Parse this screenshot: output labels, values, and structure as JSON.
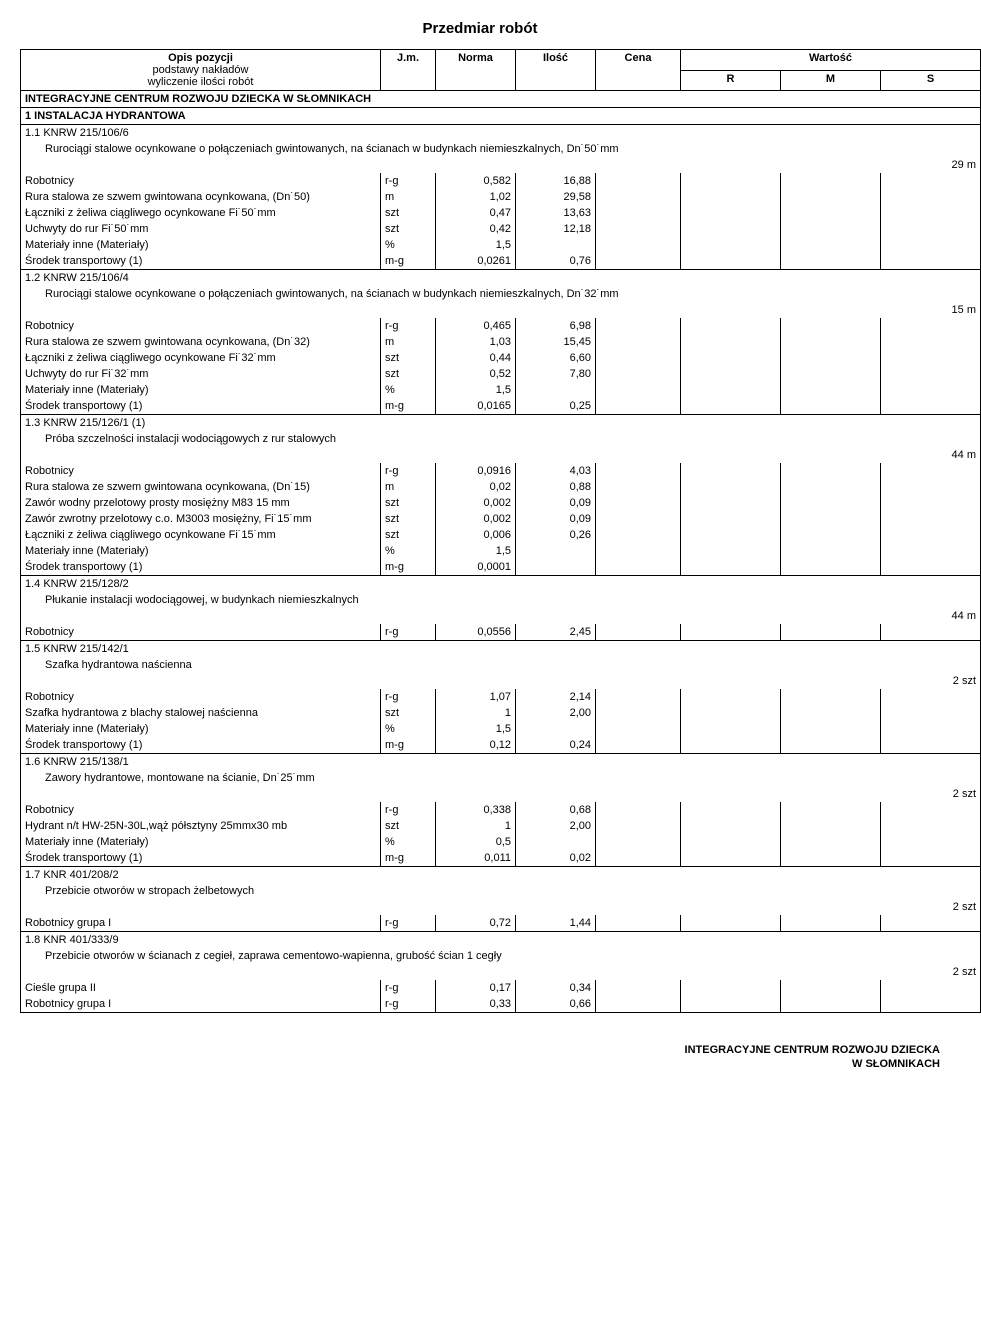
{
  "doc_title": "Przedmiar robót",
  "header": {
    "desc_l1": "Opis pozycji",
    "desc_l2": "podstawy nakładów",
    "desc_l3": "wyliczenie ilości robót",
    "jm": "J.m.",
    "norma": "Norma",
    "ilosc": "Ilość",
    "cena": "Cena",
    "wartosc": "Wartość",
    "r": "R",
    "m": "M",
    "s": "S"
  },
  "section_title": "INTEGRACYJNE CENTRUM ROZWOJU DZIECKA W SŁOMNIKACH",
  "group_title": "1 INSTALACJA HYDRANTOWA",
  "items": [
    {
      "code": "1.1 KNRW 215/106/6",
      "desc": "Rurociągi stalowe ocynkowane o połączeniach gwintowanych, na ścianach w budynkach niemieszkalnych, Dn˙50˙mm",
      "qty": "29 m",
      "rows": [
        {
          "name": "Robotnicy",
          "jm": "r-g",
          "norm": "0,582",
          "il": "16,88"
        },
        {
          "name": "Rura stalowa ze szwem gwintowana ocynkowana, (Dn˙50)",
          "jm": "m",
          "norm": "1,02",
          "il": "29,58"
        },
        {
          "name": "Łączniki z żeliwa ciągliwego ocynkowane Fi˙50˙mm",
          "jm": "szt",
          "norm": "0,47",
          "il": "13,63"
        },
        {
          "name": "Uchwyty do rur Fi˙50˙mm",
          "jm": "szt",
          "norm": "0,42",
          "il": "12,18"
        },
        {
          "name": "Materiały inne (Materiały)",
          "jm": "%",
          "norm": "1,5",
          "il": ""
        },
        {
          "name": "Środek transportowy (1)",
          "jm": "m-g",
          "norm": "0,0261",
          "il": "0,76"
        }
      ]
    },
    {
      "code": "1.2 KNRW 215/106/4",
      "desc": "Rurociągi stalowe ocynkowane o połączeniach gwintowanych, na ścianach w budynkach niemieszkalnych, Dn˙32˙mm",
      "qty": "15 m",
      "rows": [
        {
          "name": "Robotnicy",
          "jm": "r-g",
          "norm": "0,465",
          "il": "6,98"
        },
        {
          "name": "Rura stalowa ze szwem gwintowana ocynkowana, (Dn˙32)",
          "jm": "m",
          "norm": "1,03",
          "il": "15,45"
        },
        {
          "name": "Łączniki z żeliwa ciągliwego ocynkowane Fi˙32˙mm",
          "jm": "szt",
          "norm": "0,44",
          "il": "6,60"
        },
        {
          "name": "Uchwyty do rur Fi˙32˙mm",
          "jm": "szt",
          "norm": "0,52",
          "il": "7,80"
        },
        {
          "name": "Materiały inne (Materiały)",
          "jm": "%",
          "norm": "1,5",
          "il": ""
        },
        {
          "name": "Środek transportowy (1)",
          "jm": "m-g",
          "norm": "0,0165",
          "il": "0,25"
        }
      ]
    },
    {
      "code": "1.3 KNRW 215/126/1 (1)",
      "desc": "Próba szczelności instalacji wodociągowych z rur stalowych",
      "qty": "44 m",
      "rows": [
        {
          "name": "Robotnicy",
          "jm": "r-g",
          "norm": "0,0916",
          "il": "4,03"
        },
        {
          "name": "Rura stalowa ze szwem gwintowana ocynkowana, (Dn˙15)",
          "jm": "m",
          "norm": "0,02",
          "il": "0,88"
        },
        {
          "name": "Zawór wodny przelotowy prosty mosiężny M83 15 mm",
          "jm": "szt",
          "norm": "0,002",
          "il": "0,09"
        },
        {
          "name": "Zawór zwrotny przelotowy c.o. M3003 mosiężny, Fi˙15˙mm",
          "jm": "szt",
          "norm": "0,002",
          "il": "0,09"
        },
        {
          "name": "Łączniki z żeliwa ciągliwego ocynkowane Fi˙15˙mm",
          "jm": "szt",
          "norm": "0,006",
          "il": "0,26"
        },
        {
          "name": "Materiały inne (Materiały)",
          "jm": "%",
          "norm": "1,5",
          "il": ""
        },
        {
          "name": "Środek transportowy (1)",
          "jm": "m-g",
          "norm": "0,0001",
          "il": ""
        }
      ]
    },
    {
      "code": "1.4 KNRW 215/128/2",
      "desc": "Płukanie instalacji wodociągowej, w budynkach niemieszkalnych",
      "qty": "44 m",
      "rows": [
        {
          "name": "Robotnicy",
          "jm": "r-g",
          "norm": "0,0556",
          "il": "2,45"
        }
      ]
    },
    {
      "code": "1.5 KNRW 215/142/1",
      "desc": "Szafka hydrantowa naścienna",
      "qty": "2 szt",
      "rows": [
        {
          "name": "Robotnicy",
          "jm": "r-g",
          "norm": "1,07",
          "il": "2,14"
        },
        {
          "name": "Szafka hydrantowa z blachy stalowej naścienna",
          "jm": "szt",
          "norm": "1",
          "il": "2,00"
        },
        {
          "name": "Materiały inne (Materiały)",
          "jm": "%",
          "norm": "1,5",
          "il": ""
        },
        {
          "name": "Środek transportowy (1)",
          "jm": "m-g",
          "norm": "0,12",
          "il": "0,24"
        }
      ]
    },
    {
      "code": "1.6 KNRW 215/138/1",
      "desc": "Zawory hydrantowe, montowane na ścianie, Dn˙25˙mm",
      "qty": "2 szt",
      "rows": [
        {
          "name": "Robotnicy",
          "jm": "r-g",
          "norm": "0,338",
          "il": "0,68"
        },
        {
          "name": "Hydrant n/t HW-25N-30L,wąż półsztyny 25mmx30 mb",
          "jm": "szt",
          "norm": "1",
          "il": "2,00"
        },
        {
          "name": "Materiały inne (Materiały)",
          "jm": "%",
          "norm": "0,5",
          "il": ""
        },
        {
          "name": "Środek transportowy (1)",
          "jm": "m-g",
          "norm": "0,011",
          "il": "0,02"
        }
      ]
    },
    {
      "code": "1.7 KNR 401/208/2",
      "desc": "Przebicie otworów w stropach żelbetowych",
      "qty": "2 szt",
      "rows": [
        {
          "name": "Robotnicy grupa I",
          "jm": "r-g",
          "norm": "0,72",
          "il": "1,44"
        }
      ]
    },
    {
      "code": "1.8 KNR 401/333/9",
      "desc": "Przebicie otworów w ścianach z cegieł, zaprawa cementowo-wapienna, grubość ścian 1 cegły",
      "qty": "2 szt",
      "rows": [
        {
          "name": "Cieśle grupa II",
          "jm": "r-g",
          "norm": "0,17",
          "il": "0,34"
        },
        {
          "name": "Robotnicy grupa I",
          "jm": "r-g",
          "norm": "0,33",
          "il": "0,66"
        }
      ]
    }
  ],
  "footer_l1": "INTEGRACYJNE CENTRUM ROZWOJU DZIECKA",
  "footer_l2": "W SŁOMNIKACH"
}
